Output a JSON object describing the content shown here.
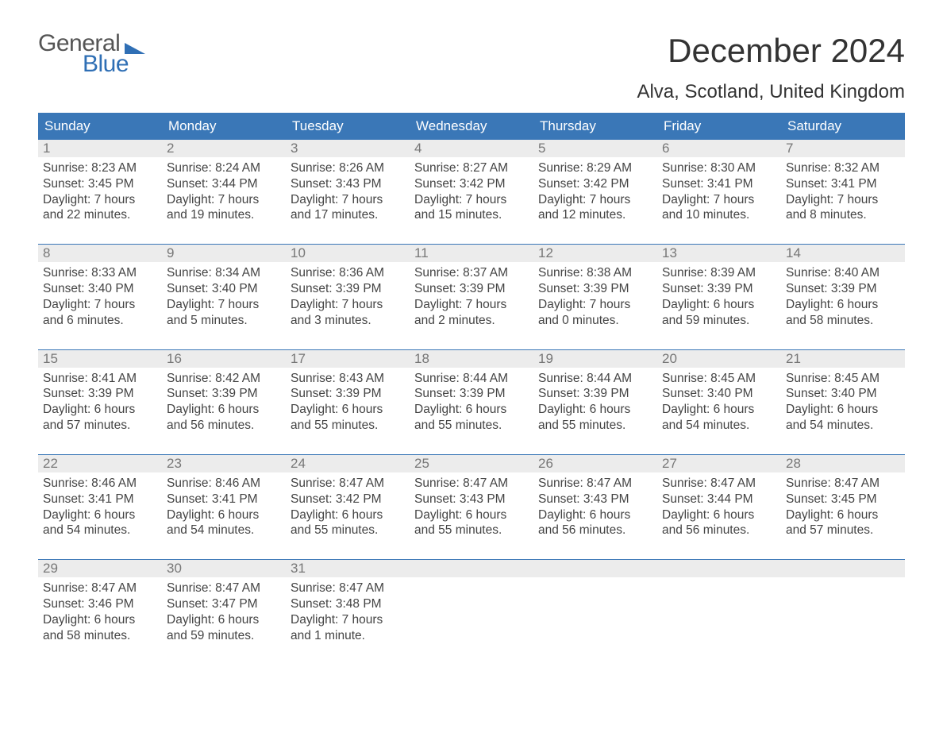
{
  "colors": {
    "header_bg": "#3a77b7",
    "header_text": "#ffffff",
    "num_row_bg": "#ececec",
    "num_text": "#777777",
    "body_text": "#444444",
    "title_text": "#333333",
    "logo_gray": "#555555",
    "logo_blue": "#2f6fb5",
    "week_border": "#3a77b7",
    "page_bg": "#ffffff"
  },
  "logo": {
    "word1": "General",
    "word2": "Blue"
  },
  "title": "December 2024",
  "location": "Alva, Scotland, United Kingdom",
  "days_of_week": [
    "Sunday",
    "Monday",
    "Tuesday",
    "Wednesday",
    "Thursday",
    "Friday",
    "Saturday"
  ],
  "weeks": [
    [
      {
        "n": "1",
        "sr": "Sunrise: 8:23 AM",
        "ss": "Sunset: 3:45 PM",
        "d1": "Daylight: 7 hours",
        "d2": "and 22 minutes."
      },
      {
        "n": "2",
        "sr": "Sunrise: 8:24 AM",
        "ss": "Sunset: 3:44 PM",
        "d1": "Daylight: 7 hours",
        "d2": "and 19 minutes."
      },
      {
        "n": "3",
        "sr": "Sunrise: 8:26 AM",
        "ss": "Sunset: 3:43 PM",
        "d1": "Daylight: 7 hours",
        "d2": "and 17 minutes."
      },
      {
        "n": "4",
        "sr": "Sunrise: 8:27 AM",
        "ss": "Sunset: 3:42 PM",
        "d1": "Daylight: 7 hours",
        "d2": "and 15 minutes."
      },
      {
        "n": "5",
        "sr": "Sunrise: 8:29 AM",
        "ss": "Sunset: 3:42 PM",
        "d1": "Daylight: 7 hours",
        "d2": "and 12 minutes."
      },
      {
        "n": "6",
        "sr": "Sunrise: 8:30 AM",
        "ss": "Sunset: 3:41 PM",
        "d1": "Daylight: 7 hours",
        "d2": "and 10 minutes."
      },
      {
        "n": "7",
        "sr": "Sunrise: 8:32 AM",
        "ss": "Sunset: 3:41 PM",
        "d1": "Daylight: 7 hours",
        "d2": "and 8 minutes."
      }
    ],
    [
      {
        "n": "8",
        "sr": "Sunrise: 8:33 AM",
        "ss": "Sunset: 3:40 PM",
        "d1": "Daylight: 7 hours",
        "d2": "and 6 minutes."
      },
      {
        "n": "9",
        "sr": "Sunrise: 8:34 AM",
        "ss": "Sunset: 3:40 PM",
        "d1": "Daylight: 7 hours",
        "d2": "and 5 minutes."
      },
      {
        "n": "10",
        "sr": "Sunrise: 8:36 AM",
        "ss": "Sunset: 3:39 PM",
        "d1": "Daylight: 7 hours",
        "d2": "and 3 minutes."
      },
      {
        "n": "11",
        "sr": "Sunrise: 8:37 AM",
        "ss": "Sunset: 3:39 PM",
        "d1": "Daylight: 7 hours",
        "d2": "and 2 minutes."
      },
      {
        "n": "12",
        "sr": "Sunrise: 8:38 AM",
        "ss": "Sunset: 3:39 PM",
        "d1": "Daylight: 7 hours",
        "d2": "and 0 minutes."
      },
      {
        "n": "13",
        "sr": "Sunrise: 8:39 AM",
        "ss": "Sunset: 3:39 PM",
        "d1": "Daylight: 6 hours",
        "d2": "and 59 minutes."
      },
      {
        "n": "14",
        "sr": "Sunrise: 8:40 AM",
        "ss": "Sunset: 3:39 PM",
        "d1": "Daylight: 6 hours",
        "d2": "and 58 minutes."
      }
    ],
    [
      {
        "n": "15",
        "sr": "Sunrise: 8:41 AM",
        "ss": "Sunset: 3:39 PM",
        "d1": "Daylight: 6 hours",
        "d2": "and 57 minutes."
      },
      {
        "n": "16",
        "sr": "Sunrise: 8:42 AM",
        "ss": "Sunset: 3:39 PM",
        "d1": "Daylight: 6 hours",
        "d2": "and 56 minutes."
      },
      {
        "n": "17",
        "sr": "Sunrise: 8:43 AM",
        "ss": "Sunset: 3:39 PM",
        "d1": "Daylight: 6 hours",
        "d2": "and 55 minutes."
      },
      {
        "n": "18",
        "sr": "Sunrise: 8:44 AM",
        "ss": "Sunset: 3:39 PM",
        "d1": "Daylight: 6 hours",
        "d2": "and 55 minutes."
      },
      {
        "n": "19",
        "sr": "Sunrise: 8:44 AM",
        "ss": "Sunset: 3:39 PM",
        "d1": "Daylight: 6 hours",
        "d2": "and 55 minutes."
      },
      {
        "n": "20",
        "sr": "Sunrise: 8:45 AM",
        "ss": "Sunset: 3:40 PM",
        "d1": "Daylight: 6 hours",
        "d2": "and 54 minutes."
      },
      {
        "n": "21",
        "sr": "Sunrise: 8:45 AM",
        "ss": "Sunset: 3:40 PM",
        "d1": "Daylight: 6 hours",
        "d2": "and 54 minutes."
      }
    ],
    [
      {
        "n": "22",
        "sr": "Sunrise: 8:46 AM",
        "ss": "Sunset: 3:41 PM",
        "d1": "Daylight: 6 hours",
        "d2": "and 54 minutes."
      },
      {
        "n": "23",
        "sr": "Sunrise: 8:46 AM",
        "ss": "Sunset: 3:41 PM",
        "d1": "Daylight: 6 hours",
        "d2": "and 54 minutes."
      },
      {
        "n": "24",
        "sr": "Sunrise: 8:47 AM",
        "ss": "Sunset: 3:42 PM",
        "d1": "Daylight: 6 hours",
        "d2": "and 55 minutes."
      },
      {
        "n": "25",
        "sr": "Sunrise: 8:47 AM",
        "ss": "Sunset: 3:43 PM",
        "d1": "Daylight: 6 hours",
        "d2": "and 55 minutes."
      },
      {
        "n": "26",
        "sr": "Sunrise: 8:47 AM",
        "ss": "Sunset: 3:43 PM",
        "d1": "Daylight: 6 hours",
        "d2": "and 56 minutes."
      },
      {
        "n": "27",
        "sr": "Sunrise: 8:47 AM",
        "ss": "Sunset: 3:44 PM",
        "d1": "Daylight: 6 hours",
        "d2": "and 56 minutes."
      },
      {
        "n": "28",
        "sr": "Sunrise: 8:47 AM",
        "ss": "Sunset: 3:45 PM",
        "d1": "Daylight: 6 hours",
        "d2": "and 57 minutes."
      }
    ],
    [
      {
        "n": "29",
        "sr": "Sunrise: 8:47 AM",
        "ss": "Sunset: 3:46 PM",
        "d1": "Daylight: 6 hours",
        "d2": "and 58 minutes."
      },
      {
        "n": "30",
        "sr": "Sunrise: 8:47 AM",
        "ss": "Sunset: 3:47 PM",
        "d1": "Daylight: 6 hours",
        "d2": "and 59 minutes."
      },
      {
        "n": "31",
        "sr": "Sunrise: 8:47 AM",
        "ss": "Sunset: 3:48 PM",
        "d1": "Daylight: 7 hours",
        "d2": "and 1 minute."
      },
      {
        "n": "",
        "sr": "",
        "ss": "",
        "d1": "",
        "d2": ""
      },
      {
        "n": "",
        "sr": "",
        "ss": "",
        "d1": "",
        "d2": ""
      },
      {
        "n": "",
        "sr": "",
        "ss": "",
        "d1": "",
        "d2": ""
      },
      {
        "n": "",
        "sr": "",
        "ss": "",
        "d1": "",
        "d2": ""
      }
    ]
  ]
}
